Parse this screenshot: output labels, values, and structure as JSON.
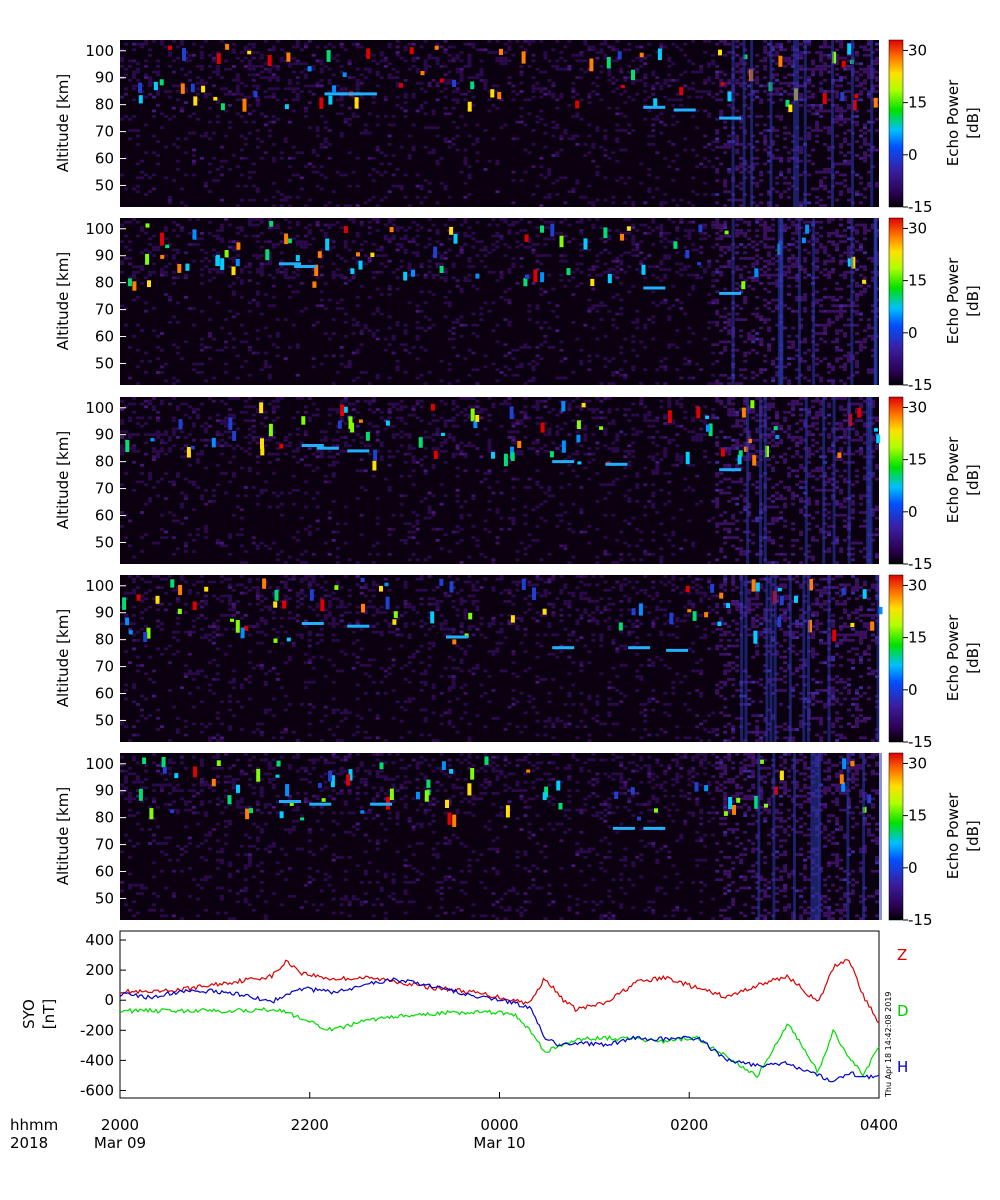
{
  "chart_data": [
    {
      "type": "heatmap",
      "panel": 1,
      "ylabel": "Altitude [km]",
      "yticks": [
        50,
        60,
        70,
        80,
        90,
        100
      ],
      "ylim": [
        42,
        104
      ],
      "colorbar": {
        "label": "Echo Power",
        "unit": "[dB]",
        "ticks": [
          30,
          15,
          0,
          -15
        ],
        "range": [
          -15,
          33
        ]
      },
      "features": [
        {
          "x": 0.28,
          "y": 84
        },
        {
          "x": 0.3,
          "y": 84
        },
        {
          "x": 0.32,
          "y": 84
        },
        {
          "x": 0.7,
          "y": 79
        },
        {
          "x": 0.74,
          "y": 78
        },
        {
          "x": 0.8,
          "y": 75
        }
      ]
    },
    {
      "type": "heatmap",
      "panel": 2,
      "ylabel": "Altitude [km]",
      "yticks": [
        50,
        60,
        70,
        80,
        90,
        100
      ],
      "ylim": [
        42,
        104
      ],
      "colorbar": {
        "label": "Echo Power",
        "unit": "[dB]",
        "ticks": [
          30,
          15,
          0,
          -15
        ],
        "range": [
          -15,
          33
        ]
      },
      "features": [
        {
          "x": 0.22,
          "y": 87
        },
        {
          "x": 0.24,
          "y": 86
        },
        {
          "x": 0.7,
          "y": 78
        },
        {
          "x": 0.8,
          "y": 76
        }
      ]
    },
    {
      "type": "heatmap",
      "panel": 3,
      "ylabel": "Altitude [km]",
      "yticks": [
        50,
        60,
        70,
        80,
        90,
        100
      ],
      "ylim": [
        42,
        104
      ],
      "colorbar": {
        "label": "Echo Power",
        "unit": "[dB]",
        "ticks": [
          30,
          15,
          0,
          -15
        ],
        "range": [
          -15,
          33
        ]
      },
      "features": [
        {
          "x": 0.25,
          "y": 86
        },
        {
          "x": 0.27,
          "y": 85
        },
        {
          "x": 0.31,
          "y": 84
        },
        {
          "x": 0.58,
          "y": 80
        },
        {
          "x": 0.65,
          "y": 79
        },
        {
          "x": 0.8,
          "y": 77
        }
      ]
    },
    {
      "type": "heatmap",
      "panel": 4,
      "ylabel": "Altitude [km]",
      "yticks": [
        50,
        60,
        70,
        80,
        90,
        100
      ],
      "ylim": [
        42,
        104
      ],
      "colorbar": {
        "label": "Echo Power",
        "unit": "[dB]",
        "ticks": [
          30,
          15,
          0,
          -15
        ],
        "range": [
          -15,
          33
        ]
      },
      "features": [
        {
          "x": 0.25,
          "y": 86
        },
        {
          "x": 0.31,
          "y": 85
        },
        {
          "x": 0.44,
          "y": 81
        },
        {
          "x": 0.58,
          "y": 77
        },
        {
          "x": 0.68,
          "y": 77
        },
        {
          "x": 0.73,
          "y": 76
        }
      ]
    },
    {
      "type": "heatmap",
      "panel": 5,
      "ylabel": "Altitude [km]",
      "yticks": [
        50,
        60,
        70,
        80,
        90,
        100
      ],
      "ylim": [
        42,
        104
      ],
      "colorbar": {
        "label": "Echo Power",
        "unit": "[dB]",
        "ticks": [
          30,
          15,
          0,
          -15
        ],
        "range": [
          -15,
          33
        ]
      },
      "features": [
        {
          "x": 0.22,
          "y": 86
        },
        {
          "x": 0.26,
          "y": 85
        },
        {
          "x": 0.34,
          "y": 85
        },
        {
          "x": 0.66,
          "y": 76
        },
        {
          "x": 0.7,
          "y": 76
        }
      ]
    },
    {
      "type": "line",
      "panel": 6,
      "ylabel": "SYO",
      "yunit": "[nT]",
      "yticks": [
        400,
        200,
        0,
        -200,
        -400,
        -600
      ],
      "ylim": [
        -650,
        460
      ],
      "x": [
        0,
        0.04,
        0.08,
        0.12,
        0.16,
        0.2,
        0.22,
        0.24,
        0.28,
        0.32,
        0.36,
        0.4,
        0.44,
        0.48,
        0.5,
        0.52,
        0.54,
        0.56,
        0.58,
        0.6,
        0.64,
        0.68,
        0.72,
        0.76,
        0.8,
        0.84,
        0.88,
        0.92,
        0.94,
        0.96,
        0.98,
        1.0
      ],
      "series": [
        {
          "name": "Z",
          "color": "#dd0000",
          "values": [
            60,
            50,
            70,
            100,
            130,
            160,
            260,
            180,
            140,
            150,
            130,
            90,
            70,
            40,
            20,
            0,
            -20,
            150,
            20,
            -60,
            -20,
            120,
            150,
            80,
            20,
            100,
            160,
            -20,
            220,
            280,
            20,
            -150
          ]
        },
        {
          "name": "D",
          "color": "#00dd00",
          "values": [
            -70,
            -70,
            -70,
            -70,
            -70,
            -60,
            -80,
            -130,
            -200,
            -140,
            -110,
            -100,
            -80,
            -80,
            -80,
            -100,
            -200,
            -350,
            -300,
            -260,
            -250,
            -260,
            -270,
            -250,
            -380,
            -500,
            -150,
            -480,
            -200,
            -380,
            -500,
            -300
          ]
        },
        {
          "name": "H",
          "color": "#0000cc",
          "values": [
            40,
            20,
            60,
            60,
            40,
            -10,
            40,
            80,
            50,
            100,
            140,
            100,
            60,
            20,
            0,
            -20,
            -50,
            -250,
            -300,
            -280,
            -300,
            -250,
            -260,
            -250,
            -400,
            -430,
            -420,
            -500,
            -540,
            -480,
            -510,
            -510
          ]
        }
      ]
    }
  ],
  "xaxis": {
    "row1_label": "hhmm",
    "row2_label": "2018",
    "ticks": [
      {
        "x": 0.0,
        "time": "2000",
        "date": "Mar 09"
      },
      {
        "x": 0.25,
        "time": "2200",
        "date": ""
      },
      {
        "x": 0.5,
        "time": "0000",
        "date": "Mar 10"
      },
      {
        "x": 0.75,
        "time": "0200",
        "date": ""
      },
      {
        "x": 1.0,
        "time": "0400",
        "date": ""
      }
    ]
  },
  "stamp": "Thu Apr 18 14:42:08 2019"
}
